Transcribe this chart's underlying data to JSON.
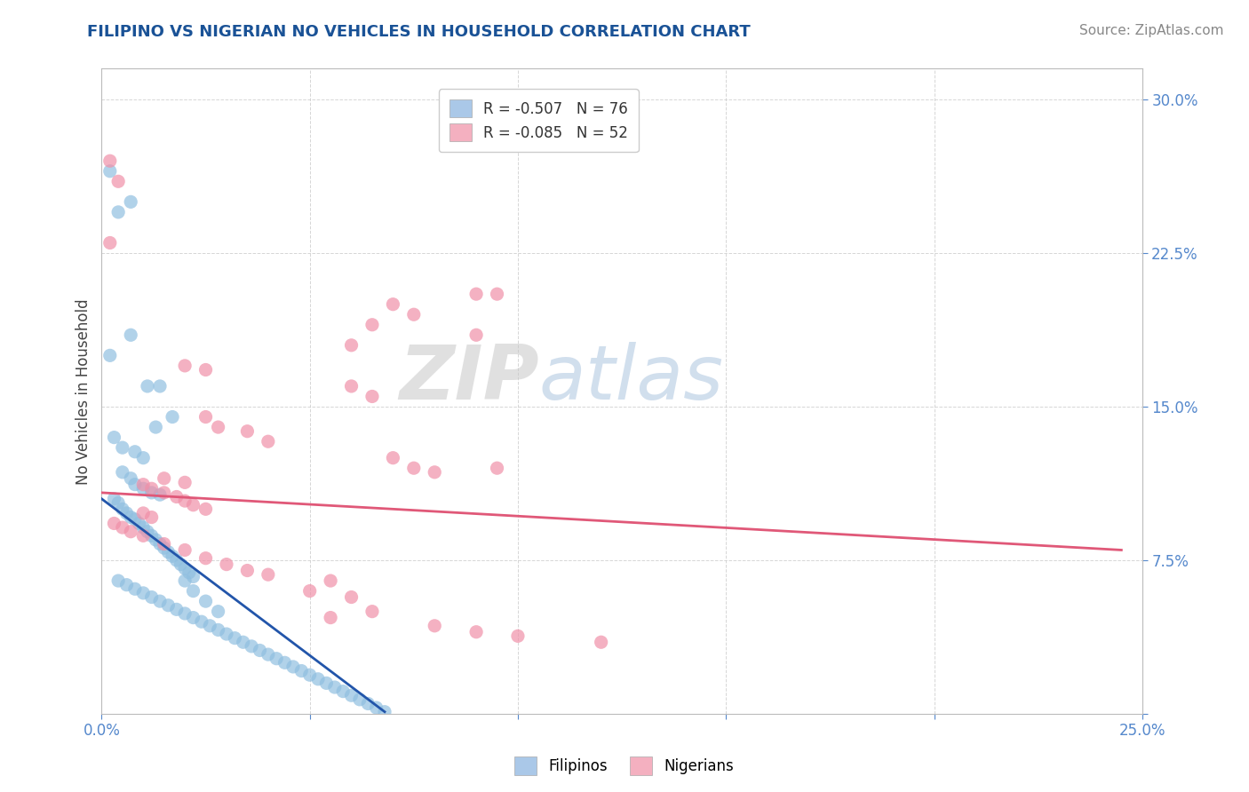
{
  "title": "FILIPINO VS NIGERIAN NO VEHICLES IN HOUSEHOLD CORRELATION CHART",
  "source": "Source: ZipAtlas.com",
  "ylabel_label": "No Vehicles in Household",
  "xlim": [
    0.0,
    0.25
  ],
  "ylim": [
    0.0,
    0.315
  ],
  "xticks": [
    0.0,
    0.05,
    0.1,
    0.15,
    0.2,
    0.25
  ],
  "yticks": [
    0.0,
    0.075,
    0.15,
    0.225,
    0.3
  ],
  "legend_entries": [
    {
      "label": "R = -0.507   N = 76",
      "color": "#aac8e8"
    },
    {
      "label": "R = -0.085   N = 52",
      "color": "#f4b0c0"
    }
  ],
  "footer_labels": [
    "Filipinos",
    "Nigerians"
  ],
  "footer_colors": [
    "#aac8e8",
    "#f4b0c0"
  ],
  "blue_scatter": [
    [
      0.002,
      0.265
    ],
    [
      0.004,
      0.245
    ],
    [
      0.007,
      0.25
    ],
    [
      0.002,
      0.175
    ],
    [
      0.007,
      0.185
    ],
    [
      0.011,
      0.16
    ],
    [
      0.014,
      0.16
    ],
    [
      0.013,
      0.14
    ],
    [
      0.017,
      0.145
    ],
    [
      0.003,
      0.135
    ],
    [
      0.005,
      0.13
    ],
    [
      0.008,
      0.128
    ],
    [
      0.01,
      0.125
    ],
    [
      0.005,
      0.118
    ],
    [
      0.007,
      0.115
    ],
    [
      0.008,
      0.112
    ],
    [
      0.01,
      0.11
    ],
    [
      0.012,
      0.108
    ],
    [
      0.014,
      0.107
    ],
    [
      0.003,
      0.105
    ],
    [
      0.004,
      0.103
    ],
    [
      0.005,
      0.1
    ],
    [
      0.006,
      0.098
    ],
    [
      0.007,
      0.096
    ],
    [
      0.008,
      0.095
    ],
    [
      0.009,
      0.093
    ],
    [
      0.01,
      0.091
    ],
    [
      0.011,
      0.089
    ],
    [
      0.012,
      0.087
    ],
    [
      0.013,
      0.085
    ],
    [
      0.014,
      0.083
    ],
    [
      0.015,
      0.081
    ],
    [
      0.016,
      0.079
    ],
    [
      0.017,
      0.077
    ],
    [
      0.018,
      0.075
    ],
    [
      0.019,
      0.073
    ],
    [
      0.02,
      0.071
    ],
    [
      0.021,
      0.069
    ],
    [
      0.022,
      0.067
    ],
    [
      0.004,
      0.065
    ],
    [
      0.006,
      0.063
    ],
    [
      0.008,
      0.061
    ],
    [
      0.01,
      0.059
    ],
    [
      0.012,
      0.057
    ],
    [
      0.014,
      0.055
    ],
    [
      0.016,
      0.053
    ],
    [
      0.018,
      0.051
    ],
    [
      0.02,
      0.049
    ],
    [
      0.022,
      0.047
    ],
    [
      0.024,
      0.045
    ],
    [
      0.026,
      0.043
    ],
    [
      0.028,
      0.041
    ],
    [
      0.03,
      0.039
    ],
    [
      0.032,
      0.037
    ],
    [
      0.034,
      0.035
    ],
    [
      0.036,
      0.033
    ],
    [
      0.038,
      0.031
    ],
    [
      0.04,
      0.029
    ],
    [
      0.042,
      0.027
    ],
    [
      0.044,
      0.025
    ],
    [
      0.046,
      0.023
    ],
    [
      0.048,
      0.021
    ],
    [
      0.05,
      0.019
    ],
    [
      0.052,
      0.017
    ],
    [
      0.054,
      0.015
    ],
    [
      0.056,
      0.013
    ],
    [
      0.058,
      0.011
    ],
    [
      0.06,
      0.009
    ],
    [
      0.062,
      0.007
    ],
    [
      0.064,
      0.005
    ],
    [
      0.066,
      0.003
    ],
    [
      0.068,
      0.001
    ],
    [
      0.02,
      0.065
    ],
    [
      0.022,
      0.06
    ],
    [
      0.025,
      0.055
    ],
    [
      0.028,
      0.05
    ]
  ],
  "pink_scatter": [
    [
      0.002,
      0.23
    ],
    [
      0.002,
      0.27
    ],
    [
      0.004,
      0.26
    ],
    [
      0.07,
      0.2
    ],
    [
      0.075,
      0.195
    ],
    [
      0.09,
      0.205
    ],
    [
      0.095,
      0.205
    ],
    [
      0.065,
      0.19
    ],
    [
      0.09,
      0.185
    ],
    [
      0.06,
      0.18
    ],
    [
      0.02,
      0.17
    ],
    [
      0.025,
      0.168
    ],
    [
      0.06,
      0.16
    ],
    [
      0.065,
      0.155
    ],
    [
      0.025,
      0.145
    ],
    [
      0.028,
      0.14
    ],
    [
      0.035,
      0.138
    ],
    [
      0.04,
      0.133
    ],
    [
      0.07,
      0.125
    ],
    [
      0.075,
      0.12
    ],
    [
      0.095,
      0.12
    ],
    [
      0.08,
      0.118
    ],
    [
      0.015,
      0.115
    ],
    [
      0.02,
      0.113
    ],
    [
      0.01,
      0.112
    ],
    [
      0.012,
      0.11
    ],
    [
      0.015,
      0.108
    ],
    [
      0.018,
      0.106
    ],
    [
      0.02,
      0.104
    ],
    [
      0.022,
      0.102
    ],
    [
      0.025,
      0.1
    ],
    [
      0.01,
      0.098
    ],
    [
      0.012,
      0.096
    ],
    [
      0.003,
      0.093
    ],
    [
      0.005,
      0.091
    ],
    [
      0.007,
      0.089
    ],
    [
      0.01,
      0.087
    ],
    [
      0.015,
      0.083
    ],
    [
      0.02,
      0.08
    ],
    [
      0.025,
      0.076
    ],
    [
      0.03,
      0.073
    ],
    [
      0.035,
      0.07
    ],
    [
      0.04,
      0.068
    ],
    [
      0.055,
      0.065
    ],
    [
      0.05,
      0.06
    ],
    [
      0.06,
      0.057
    ],
    [
      0.065,
      0.05
    ],
    [
      0.055,
      0.047
    ],
    [
      0.08,
      0.043
    ],
    [
      0.09,
      0.04
    ],
    [
      0.1,
      0.038
    ],
    [
      0.12,
      0.035
    ]
  ],
  "blue_line": [
    [
      0.0,
      0.105
    ],
    [
      0.068,
      0.001
    ]
  ],
  "pink_line": [
    [
      0.0,
      0.108
    ],
    [
      0.245,
      0.08
    ]
  ],
  "watermark_zip": "ZIP",
  "watermark_atlas": "atlas",
  "title_color": "#1a5296",
  "title_fontsize": 13,
  "scatter_blue_color": "#90bfe0",
  "scatter_pink_color": "#f090a8",
  "line_blue_color": "#2255aa",
  "line_pink_color": "#e05878",
  "grid_color": "#cccccc",
  "tick_color": "#5588cc",
  "ylabel_color": "#444444",
  "source_color": "#888888"
}
